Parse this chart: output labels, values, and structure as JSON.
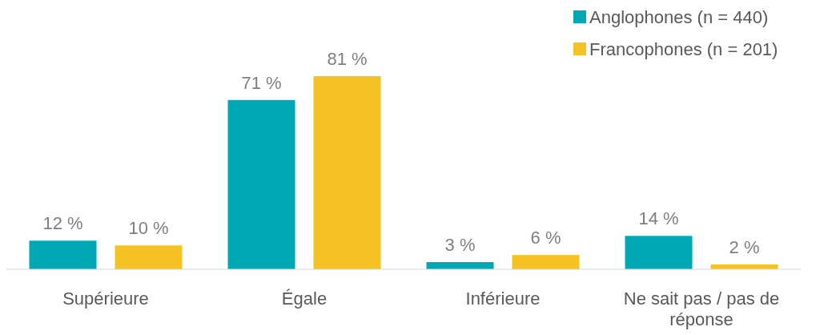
{
  "chart_data": {
    "type": "bar",
    "categories": [
      "Supérieure",
      "Égale",
      "Inférieure",
      "Ne sait pas / pas de réponse"
    ],
    "series": [
      {
        "name": "Anglophones (n = 440)",
        "color": "#00a7b5",
        "values": [
          12,
          71,
          3,
          14
        ],
        "value_labels": [
          "12 %",
          "71 %",
          "3 %",
          "14 %"
        ]
      },
      {
        "name": "Francophones (n = 201)",
        "color": "#f5c324",
        "values": [
          10,
          81,
          6,
          2
        ],
        "value_labels": [
          "10 %",
          "81 %",
          "6 %",
          "2 %"
        ]
      }
    ],
    "legend": "top right"
  }
}
